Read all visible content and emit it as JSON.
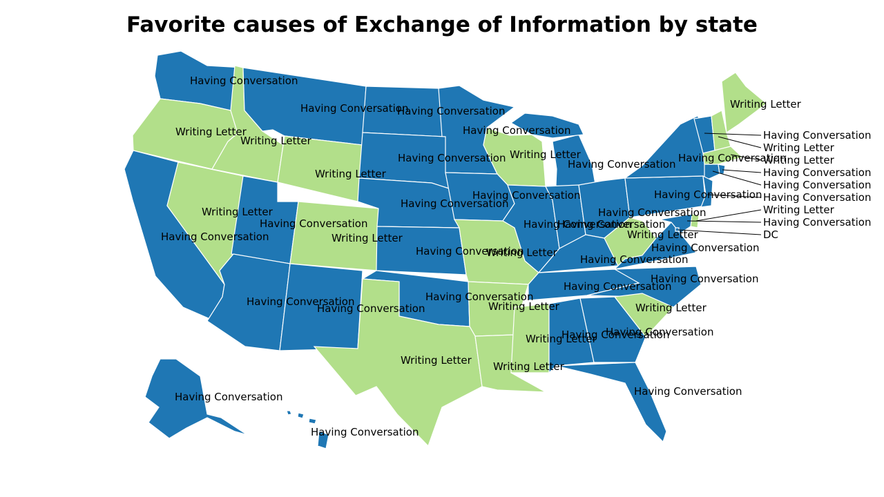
{
  "title": "Favorite causes of Exchange of Information by state",
  "colors": {
    "conversation": "#1f77b4",
    "letter": "#b2df8a"
  },
  "categories": {
    "conversation": "Having Conversation",
    "letter": "Writing Letter"
  },
  "states": [
    {
      "code": "WA",
      "value": "Having Conversation"
    },
    {
      "code": "OR",
      "value": "Writing Letter"
    },
    {
      "code": "ID",
      "value": "Writing Letter"
    },
    {
      "code": "MT",
      "value": "Having Conversation"
    },
    {
      "code": "ND",
      "value": "Having Conversation"
    },
    {
      "code": "MN",
      "value": "Having Conversation"
    },
    {
      "code": "WI",
      "value": "Writing Letter"
    },
    {
      "code": "MI",
      "value": "Having Conversation"
    },
    {
      "code": "UPMI",
      "value": "Having Conversation"
    },
    {
      "code": "WY",
      "value": "Writing Letter"
    },
    {
      "code": "SD",
      "value": "Having Conversation"
    },
    {
      "code": "CA",
      "value": "Having Conversation"
    },
    {
      "code": "NV",
      "value": "Writing Letter"
    },
    {
      "code": "UT",
      "value": "Having Conversation"
    },
    {
      "code": "CO",
      "value": "Writing Letter"
    },
    {
      "code": "NE",
      "value": "Having Conversation"
    },
    {
      "code": "IA",
      "value": "Having Conversation"
    },
    {
      "code": "IL",
      "value": "Having Conversation"
    },
    {
      "code": "IN",
      "value": "Having Conversation"
    },
    {
      "code": "OH",
      "value": "Having Conversation"
    },
    {
      "code": "AZ",
      "value": "Having Conversation"
    },
    {
      "code": "NM",
      "value": "Having Conversation"
    },
    {
      "code": "KS",
      "value": "Having Conversation"
    },
    {
      "code": "MO",
      "value": "Writing Letter"
    },
    {
      "code": "KY",
      "value": "Having Conversation"
    },
    {
      "code": "WV",
      "value": "Writing Letter"
    },
    {
      "code": "VA",
      "value": "Having Conversation"
    },
    {
      "code": "PA",
      "value": "Having Conversation"
    },
    {
      "code": "NY",
      "value": "Having Conversation"
    },
    {
      "code": "OK",
      "value": "Having Conversation"
    },
    {
      "code": "AR",
      "value": "Writing Letter"
    },
    {
      "code": "TN",
      "value": "Having Conversation"
    },
    {
      "code": "NC",
      "value": "Having Conversation"
    },
    {
      "code": "TX",
      "value": "Writing Letter"
    },
    {
      "code": "LA",
      "value": "Writing Letter"
    },
    {
      "code": "MS",
      "value": "Writing Letter"
    },
    {
      "code": "AL",
      "value": "Having Conversation"
    },
    {
      "code": "GA",
      "value": "Having Conversation"
    },
    {
      "code": "SC",
      "value": "Writing Letter"
    },
    {
      "code": "FL",
      "value": "Having Conversation"
    },
    {
      "code": "ME",
      "value": "Writing Letter"
    },
    {
      "code": "VT",
      "value": "Having Conversation"
    },
    {
      "code": "NH",
      "value": "Writing Letter"
    },
    {
      "code": "MA",
      "value": "Writing Letter"
    },
    {
      "code": "CT",
      "value": "Having Conversation"
    },
    {
      "code": "RI",
      "value": "Having Conversation"
    },
    {
      "code": "NJ",
      "value": "Having Conversation"
    },
    {
      "code": "DE",
      "value": "Writing Letter"
    },
    {
      "code": "MD",
      "value": "Having Conversation"
    },
    {
      "code": "DC",
      "value": "Having Conversation"
    },
    {
      "code": "AK",
      "value": "Having Conversation"
    },
    {
      "code": "HI",
      "value": "Having Conversation"
    }
  ],
  "labels": [
    {
      "state": "WA",
      "text": "Having Conversation"
    },
    {
      "state": "OR",
      "text": "Writing Letter"
    },
    {
      "state": "ID",
      "text": "Writing Letter"
    },
    {
      "state": "MT",
      "text": "Having Conversation"
    },
    {
      "state": "ND",
      "text": "Having Conversation"
    },
    {
      "state": "MN",
      "text": "Having Conversation"
    },
    {
      "state": "WI",
      "text": "Writing Letter"
    },
    {
      "state": "MI",
      "text": "Having Conversation"
    },
    {
      "state": "WY",
      "text": "Writing Letter"
    },
    {
      "state": "SD",
      "text": "Having Conversation"
    },
    {
      "state": "NV",
      "text": "Writing Letter"
    },
    {
      "state": "UT",
      "text": "Having Conversation"
    },
    {
      "state": "CA",
      "text": "Having Conversation"
    },
    {
      "state": "CO",
      "text": "Writing Letter"
    },
    {
      "state": "NE",
      "text": "Having Conversation"
    },
    {
      "state": "IA",
      "text": "Having Conversation"
    },
    {
      "state": "IL",
      "text": "Having Conversation"
    },
    {
      "state": "IN",
      "text": "Having Conversation"
    },
    {
      "state": "OH",
      "text": "Having Conversation"
    },
    {
      "state": "KS",
      "text": "Having Conversation"
    },
    {
      "state": "MO",
      "text": "Writing Letter"
    },
    {
      "state": "WV",
      "text": "Writing Letter"
    },
    {
      "state": "VA",
      "text": "Having Conversation"
    },
    {
      "state": "KY",
      "text": "Having Conversation"
    },
    {
      "state": "PA",
      "text": "Having Conversation"
    },
    {
      "state": "NY",
      "text": "Having Conversation"
    },
    {
      "state": "AZ",
      "text": "Having Conversation"
    },
    {
      "state": "NM",
      "text": "Having Conversation"
    },
    {
      "state": "OK",
      "text": "Having Conversation"
    },
    {
      "state": "TN",
      "text": "Having Conversation"
    },
    {
      "state": "NC",
      "text": "Having Conversation"
    },
    {
      "state": "AR",
      "text": "Writing Letter"
    },
    {
      "state": "SC",
      "text": "Writing Letter"
    },
    {
      "state": "MS",
      "text": "Writing Letter"
    },
    {
      "state": "AL",
      "text": "Having Conversation"
    },
    {
      "state": "GA",
      "text": "Having Conversation"
    },
    {
      "state": "TX",
      "text": "Writing Letter"
    },
    {
      "state": "LA",
      "text": "Writing Letter"
    },
    {
      "state": "FL",
      "text": "Having Conversation"
    },
    {
      "state": "AK",
      "text": "Having Conversation"
    },
    {
      "state": "HI",
      "text": "Having Conversation"
    },
    {
      "state": "ME",
      "text": "Writing Letter"
    }
  ],
  "callouts": [
    {
      "state": "VT",
      "text": "Having Conversation"
    },
    {
      "state": "NH",
      "text": "Writing Letter"
    },
    {
      "state": "MA",
      "text": "Writing Letter"
    },
    {
      "state": "RI",
      "text": "Having Conversation"
    },
    {
      "state": "CT",
      "text": "Having Conversation"
    },
    {
      "state": "NJ",
      "text": "Having Conversation"
    },
    {
      "state": "DE",
      "text": "Writing Letter"
    },
    {
      "state": "MD",
      "text": "Having Conversation"
    },
    {
      "state": "DC",
      "text": "DC"
    }
  ]
}
